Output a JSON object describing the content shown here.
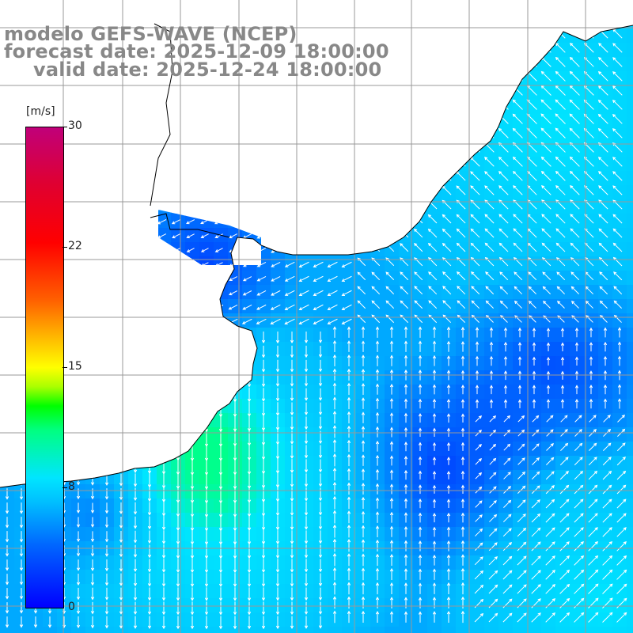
{
  "title": {
    "line1": "modelo GEFS-WAVE (NCEP)",
    "line2": "forecast date: 2025-12-09 18:00:00",
    "line3": "valid date: 2025-12-24 18:00:00"
  },
  "colorbar": {
    "unit": "[m/s]",
    "ticks": [
      "30",
      "22",
      "15",
      "8",
      "0"
    ],
    "tick_values": [
      30,
      22,
      15,
      8,
      0
    ],
    "range": [
      0,
      30
    ],
    "colors": [
      "#0000ff",
      "#0066ff",
      "#00bfff",
      "#00e5ff",
      "#00ff80",
      "#00ff00",
      "#ffff00",
      "#ff6000",
      "#ff0000",
      "#c0007a"
    ]
  },
  "map": {
    "land_color": "#ffffff",
    "grid_color": "#999999",
    "coastline_color": "#000000",
    "arrow_color": "#ffffff",
    "grid": true,
    "field": "wind speed over ocean with direction arrows",
    "dominant_speed_ms": [
      0,
      10
    ]
  }
}
